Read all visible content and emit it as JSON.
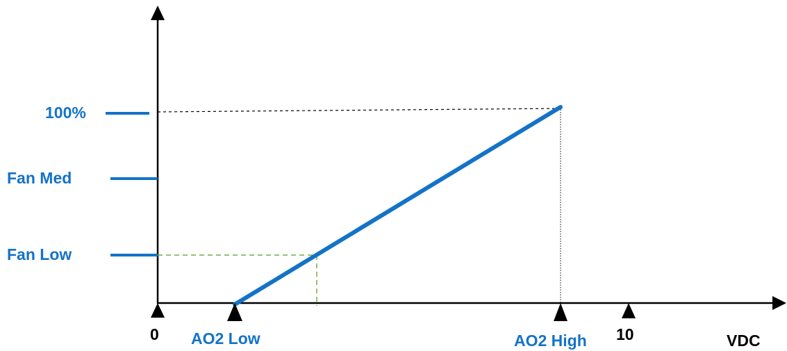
{
  "colors": {
    "accent": "#1473c7",
    "axis": "#000000",
    "guide_green": "#70ad47",
    "guide_black": "#000000"
  },
  "y_labels": {
    "max": "100%",
    "med": "Fan Med",
    "low": "Fan Low"
  },
  "x_labels": {
    "zero": "0",
    "ao2_low": "AO2 Low",
    "ao2_high": "AO2 High",
    "ten": "10",
    "unit": "VDC"
  }
}
